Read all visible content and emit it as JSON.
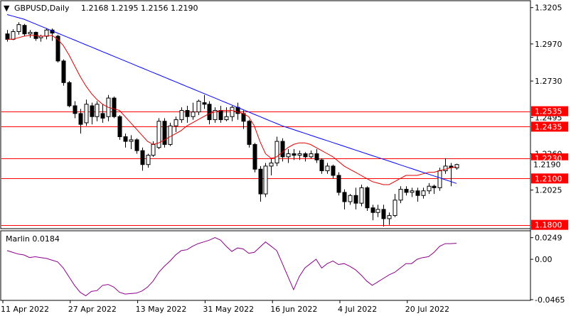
{
  "window": {
    "menu_glyph": "▼",
    "symbol_info": "GBPUSD,Daily",
    "ohlc": "1.2168 1.2195 1.2156 1.2190"
  },
  "price_axis": {
    "ticks": [
      "1.3205",
      "1.2970",
      "1.2730",
      "1.2495",
      "1.2260",
      "1.2025"
    ],
    "current_price": "1.2190"
  },
  "levels": [
    {
      "label": "1.2535",
      "price": 1.2535
    },
    {
      "label": "1.2435",
      "price": 1.2435
    },
    {
      "label": "1.2230",
      "price": 1.223
    },
    {
      "label": "1.2100",
      "price": 1.21
    },
    {
      "label": "1.1800",
      "price": 1.18
    }
  ],
  "indicator": {
    "title": "Marlin 0.0184",
    "ticks": [
      "0.0249",
      "0.00",
      "-0.0465"
    ]
  },
  "time_axis": {
    "labels": [
      "11 Apr 2022",
      "27 Apr 2022",
      "13 May 2022",
      "31 May 2022",
      "16 Jun 2022",
      "4 Jul 2022",
      "20 Jul 2022"
    ]
  },
  "colors": {
    "level_line": "#ff0000",
    "ma_fast": "#e00000",
    "ma_slow": "#0000ff",
    "oscillator": "#8b008b",
    "level_label_bg": "#ff0000"
  },
  "chart_data": {
    "type": "candlestick",
    "title": "GBPUSD,Daily",
    "price_range": [
      1.178,
      1.3245
    ],
    "indicator_range": [
      -0.0465,
      0.032
    ],
    "candles": [
      [
        1.3035,
        1.306,
        1.2985,
        1.3
      ],
      [
        1.3,
        1.3065,
        1.2995,
        1.305
      ],
      [
        1.305,
        1.311,
        1.303,
        1.3095
      ],
      [
        1.309,
        1.31,
        1.302,
        1.3035
      ],
      [
        1.3035,
        1.306,
        1.301,
        1.3045
      ],
      [
        1.3045,
        1.305,
        1.299,
        1.3005
      ],
      [
        1.301,
        1.303,
        1.2985,
        1.302
      ],
      [
        1.302,
        1.307,
        1.3,
        1.306
      ],
      [
        1.306,
        1.307,
        1.299,
        1.304
      ],
      [
        1.302,
        1.303,
        1.285,
        1.286
      ],
      [
        1.286,
        1.287,
        1.27,
        1.272
      ],
      [
        1.272,
        1.273,
        1.256,
        1.257
      ],
      [
        1.257,
        1.26,
        1.249,
        1.252
      ],
      [
        1.252,
        1.255,
        1.239,
        1.245
      ],
      [
        1.246,
        1.261,
        1.244,
        1.258
      ],
      [
        1.257,
        1.259,
        1.245,
        1.25
      ],
      [
        1.25,
        1.26,
        1.247,
        1.258
      ],
      [
        1.252,
        1.258,
        1.246,
        1.249
      ],
      [
        1.25,
        1.264,
        1.247,
        1.262
      ],
      [
        1.262,
        1.263,
        1.249,
        1.25
      ],
      [
        1.25,
        1.251,
        1.235,
        1.237
      ],
      [
        1.237,
        1.239,
        1.23,
        1.234
      ],
      [
        1.234,
        1.238,
        1.229,
        1.235
      ],
      [
        1.235,
        1.236,
        1.226,
        1.228
      ],
      [
        1.228,
        1.23,
        1.215,
        1.219
      ],
      [
        1.219,
        1.226,
        1.217,
        1.225
      ],
      [
        1.225,
        1.234,
        1.224,
        1.232
      ],
      [
        1.23,
        1.249,
        1.229,
        1.247
      ],
      [
        1.247,
        1.249,
        1.23,
        1.232
      ],
      [
        1.232,
        1.246,
        1.231,
        1.244
      ],
      [
        1.244,
        1.25,
        1.24,
        1.248
      ],
      [
        1.248,
        1.256,
        1.246,
        1.254
      ],
      [
        1.254,
        1.257,
        1.246,
        1.25
      ],
      [
        1.25,
        1.259,
        1.248,
        1.253
      ],
      [
        1.253,
        1.261,
        1.251,
        1.26
      ],
      [
        1.259,
        1.264,
        1.255,
        1.258
      ],
      [
        1.258,
        1.26,
        1.245,
        1.248
      ],
      [
        1.248,
        1.256,
        1.246,
        1.254
      ],
      [
        1.254,
        1.257,
        1.246,
        1.248
      ],
      [
        1.248,
        1.256,
        1.247,
        1.25
      ],
      [
        1.25,
        1.257,
        1.247,
        1.256
      ],
      [
        1.256,
        1.259,
        1.248,
        1.252
      ],
      [
        1.252,
        1.254,
        1.242,
        1.247
      ],
      [
        1.247,
        1.248,
        1.23,
        1.232
      ],
      [
        1.232,
        1.233,
        1.214,
        1.216
      ],
      [
        1.216,
        1.218,
        1.195,
        1.2
      ],
      [
        1.2,
        1.22,
        1.198,
        1.218
      ],
      [
        1.218,
        1.223,
        1.212,
        1.22
      ],
      [
        1.22,
        1.237,
        1.218,
        1.234
      ],
      [
        1.234,
        1.236,
        1.221,
        1.224
      ],
      [
        1.224,
        1.229,
        1.22,
        1.226
      ],
      [
        1.226,
        1.229,
        1.222,
        1.225
      ],
      [
        1.225,
        1.228,
        1.222,
        1.226
      ],
      [
        1.226,
        1.227,
        1.221,
        1.224
      ],
      [
        1.224,
        1.228,
        1.223,
        1.226
      ],
      [
        1.226,
        1.229,
        1.22,
        1.222
      ],
      [
        1.222,
        1.223,
        1.213,
        1.215
      ],
      [
        1.215,
        1.22,
        1.213,
        1.218
      ],
      [
        1.218,
        1.219,
        1.21,
        1.212
      ],
      [
        1.212,
        1.214,
        1.199,
        1.201
      ],
      [
        1.201,
        1.203,
        1.19,
        1.195
      ],
      [
        1.195,
        1.2,
        1.193,
        1.199
      ],
      [
        1.199,
        1.204,
        1.19,
        1.194
      ],
      [
        1.194,
        1.206,
        1.192,
        1.204
      ],
      [
        1.204,
        1.205,
        1.189,
        1.191
      ],
      [
        1.191,
        1.193,
        1.183,
        1.188
      ],
      [
        1.188,
        1.193,
        1.185,
        1.19
      ],
      [
        1.19,
        1.193,
        1.179,
        1.184
      ],
      [
        1.184,
        1.188,
        1.18,
        1.186
      ],
      [
        1.186,
        1.2,
        1.185,
        1.196
      ],
      [
        1.196,
        1.205,
        1.194,
        1.203
      ],
      [
        1.203,
        1.205,
        1.199,
        1.201
      ],
      [
        1.201,
        1.204,
        1.198,
        1.202
      ],
      [
        1.202,
        1.204,
        1.195,
        1.199
      ],
      [
        1.199,
        1.204,
        1.197,
        1.202
      ],
      [
        1.202,
        1.207,
        1.2,
        1.205
      ],
      [
        1.205,
        1.206,
        1.2,
        1.204
      ],
      [
        1.204,
        1.217,
        1.202,
        1.215
      ],
      [
        1.215,
        1.223,
        1.213,
        1.218
      ],
      [
        1.218,
        1.22,
        1.205,
        1.217
      ],
      [
        1.2168,
        1.2195,
        1.2156,
        1.219
      ]
    ],
    "ma_fast": [
      1.3,
      1.3,
      1.301,
      1.302,
      1.3025,
      1.3025,
      1.302,
      1.3022,
      1.3025,
      1.3,
      1.296,
      1.29,
      1.283,
      1.276,
      1.27,
      1.265,
      1.261,
      1.258,
      1.256,
      1.255,
      1.254,
      1.25,
      1.246,
      1.242,
      1.238,
      1.234,
      1.232,
      1.233,
      1.235,
      1.237,
      1.239,
      1.241,
      1.244,
      1.246,
      1.248,
      1.25,
      1.252,
      1.253,
      1.254,
      1.254,
      1.254,
      1.253,
      1.252,
      1.25,
      1.244,
      1.234,
      1.226,
      1.223,
      1.224,
      1.227,
      1.23,
      1.232,
      1.233,
      1.233,
      1.232,
      1.23,
      1.228,
      1.226,
      1.224,
      1.221,
      1.218,
      1.216,
      1.214,
      1.212,
      1.21,
      1.208,
      1.207,
      1.206,
      1.206,
      1.208,
      1.21,
      1.212,
      1.212,
      1.212,
      1.213,
      1.214,
      1.214,
      1.215,
      1.216,
      1.217,
      1.2175
    ],
    "ma_slow": [
      1.316,
      1.315,
      1.314,
      1.313,
      1.3115,
      1.31,
      1.3085,
      1.307,
      1.3055,
      1.304,
      1.3025,
      1.301,
      1.2995,
      1.298,
      1.2965,
      1.295,
      1.2935,
      1.292,
      1.2905,
      1.289,
      1.2875,
      1.286,
      1.2845,
      1.283,
      1.2815,
      1.28,
      1.2785,
      1.277,
      1.2755,
      1.274,
      1.2725,
      1.271,
      1.2695,
      1.268,
      1.2665,
      1.265,
      1.2635,
      1.262,
      1.2605,
      1.259,
      1.2575,
      1.256,
      1.2545,
      1.253,
      1.2515,
      1.25,
      1.2485,
      1.247,
      1.2455,
      1.244,
      1.2428,
      1.2416,
      1.2404,
      1.2392,
      1.238,
      1.2368,
      1.2356,
      1.2344,
      1.2332,
      1.232,
      1.2308,
      1.2296,
      1.2284,
      1.2272,
      1.226,
      1.2248,
      1.2236,
      1.2224,
      1.2212,
      1.22,
      1.2188,
      1.2176,
      1.2164,
      1.2152,
      1.214,
      1.2128,
      1.2116,
      1.2104,
      1.2092,
      1.208,
      1.2068
    ],
    "oscillator": [
      0.01,
      0.008,
      0.006,
      0.005,
      0.002,
      0.003,
      0.002,
      0.001,
      -0.001,
      -0.003,
      -0.01,
      -0.02,
      -0.03,
      -0.038,
      -0.042,
      -0.037,
      -0.036,
      -0.03,
      -0.029,
      -0.032,
      -0.038,
      -0.04,
      -0.0395,
      -0.039,
      -0.0365,
      -0.032,
      -0.025,
      -0.015,
      -0.008,
      -0.002,
      0.005,
      0.01,
      0.011,
      0.015,
      0.018,
      0.02,
      0.022,
      0.025,
      0.022,
      0.015,
      0.009,
      0.013,
      0.012,
      0.007,
      0.008,
      0.014,
      0.02,
      0.015,
      0.01,
      -0.005,
      -0.02,
      -0.035,
      -0.02,
      -0.01,
      -0.005,
      0.0,
      -0.01,
      -0.005,
      -0.002,
      -0.006,
      -0.005,
      -0.008,
      -0.012,
      -0.018,
      -0.025,
      -0.03,
      -0.026,
      -0.022,
      -0.018,
      -0.015,
      -0.01,
      -0.005,
      -0.005,
      0.0,
      0.002,
      0.003,
      0.008,
      0.015,
      0.018,
      0.018,
      0.0184
    ]
  }
}
